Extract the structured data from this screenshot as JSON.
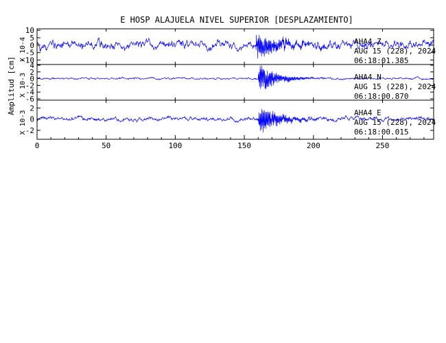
{
  "chart_data": {
    "type": "line",
    "title": "E HOSP ALAJUELA NIVEL SUPERIOR [DESPLAZAMIENTO]",
    "shared_ylabel": "Amplitud [cm]",
    "xlabel": "",
    "xlim": [
      0,
      287
    ],
    "x_ticks": [
      0,
      50,
      100,
      150,
      200,
      250
    ],
    "line_color": "#0000ff",
    "axis_color": "#000000",
    "panels": [
      {
        "channel": "AHA4  Z",
        "date": "AUG 15 (228), 2024",
        "time": "06:18:01.385",
        "scale_label": "X 10-4",
        "ylim": [
          -13,
          11
        ],
        "y_ticks": [
          10,
          5,
          0,
          -5,
          -10
        ],
        "y_tick_labels": [
          "10",
          "5",
          "0",
          "-5",
          "-10"
        ],
        "trace_profile": {
          "noise_amplitude": 3.6,
          "event_start_s": 158,
          "event_peak_amplitude": 10,
          "event_decay_s": 18
        }
      },
      {
        "channel": "AHA4  N",
        "date": "AUG 15 (228), 2024",
        "time": "06:18:00.870",
        "scale_label": "X 10-3",
        "ylim": [
          -6.4,
          4.2
        ],
        "y_ticks": [
          4,
          2,
          0,
          -2,
          -4,
          -6
        ],
        "y_tick_labels": [
          "4",
          "2",
          "0",
          "-2",
          "-4",
          "-6"
        ],
        "trace_profile": {
          "noise_amplitude": 0.35,
          "event_start_s": 160,
          "event_peak_amplitude": 5.8,
          "event_decay_s": 12
        }
      },
      {
        "channel": "AHA4  E",
        "date": "AUG 15 (228), 2024",
        "time": "06:18:00.015",
        "scale_label": "X 10-3",
        "ylim": [
          -3.6,
          3.4
        ],
        "y_ticks": [
          2,
          0,
          -2
        ],
        "y_tick_labels": [
          "2",
          "0",
          "-2"
        ],
        "trace_profile": {
          "noise_amplitude": 0.45,
          "event_start_s": 160,
          "event_peak_amplitude": 3.2,
          "event_decay_s": 14
        }
      }
    ]
  }
}
